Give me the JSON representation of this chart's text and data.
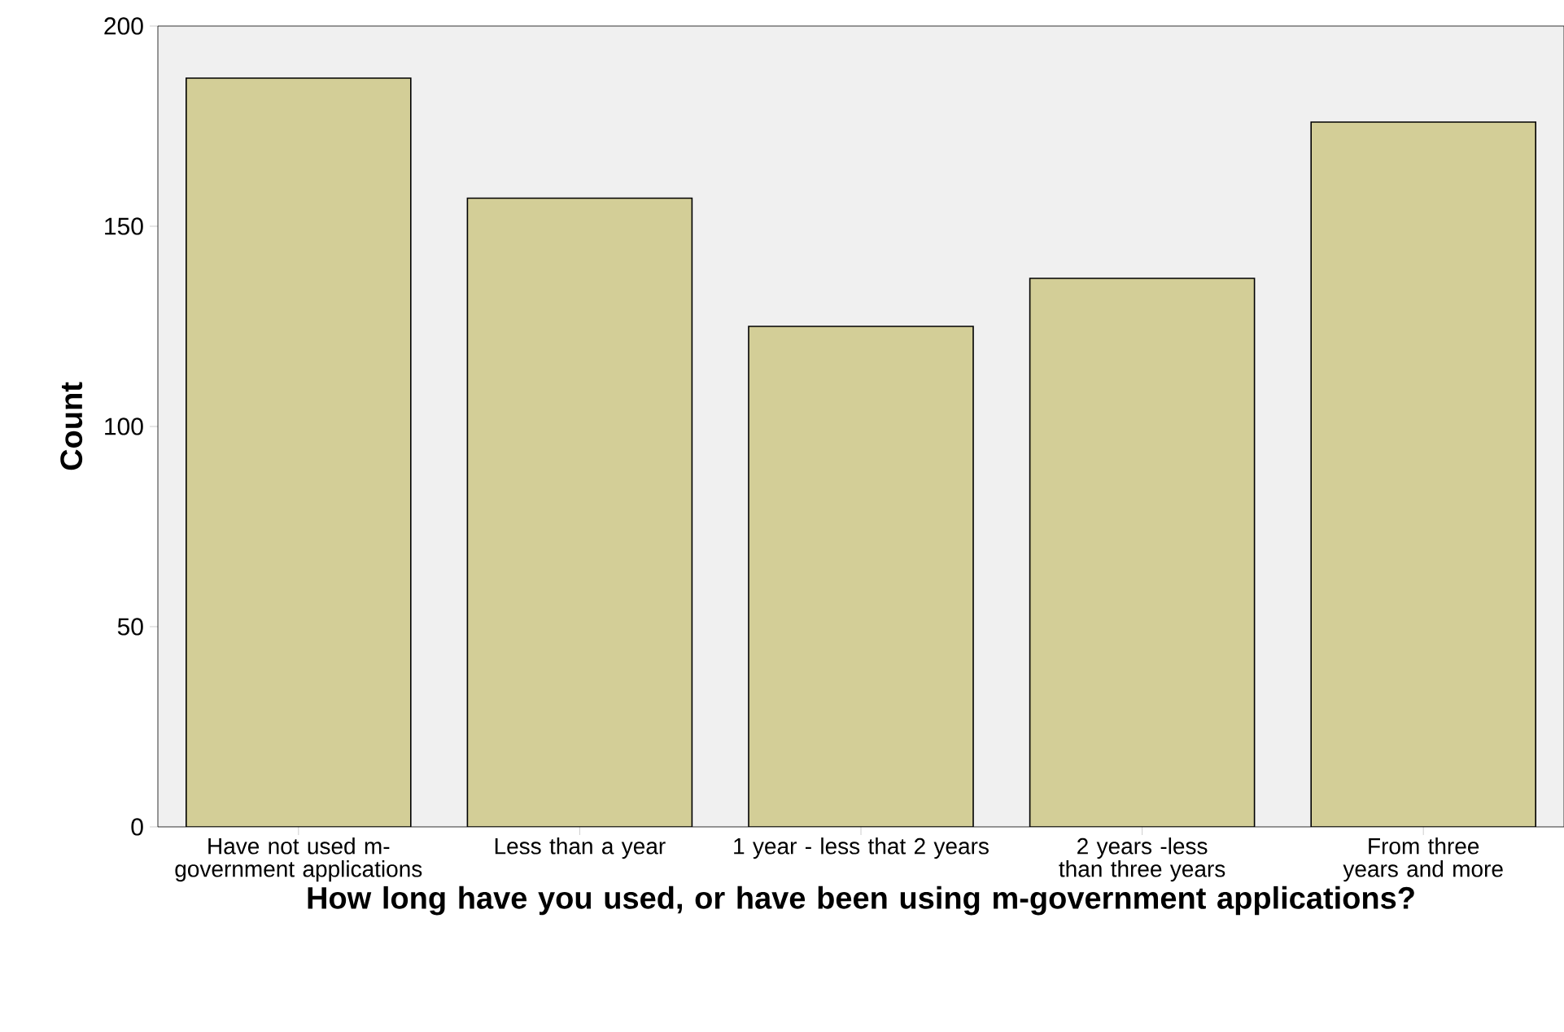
{
  "chart_data": {
    "type": "bar",
    "xlabel": "How long have you used, or have been using m-government applications?",
    "ylabel": "Count",
    "categories": [
      "Have not used m-government applications",
      "Less than a year",
      "1 year - less that 2 years",
      "2 years -less than three years",
      "From three years and more"
    ],
    "values": [
      187,
      157,
      125,
      137,
      176
    ],
    "color": "#d3ce97",
    "ylim": [
      0,
      200
    ],
    "yticks": [
      0,
      50,
      100,
      150,
      200
    ]
  }
}
